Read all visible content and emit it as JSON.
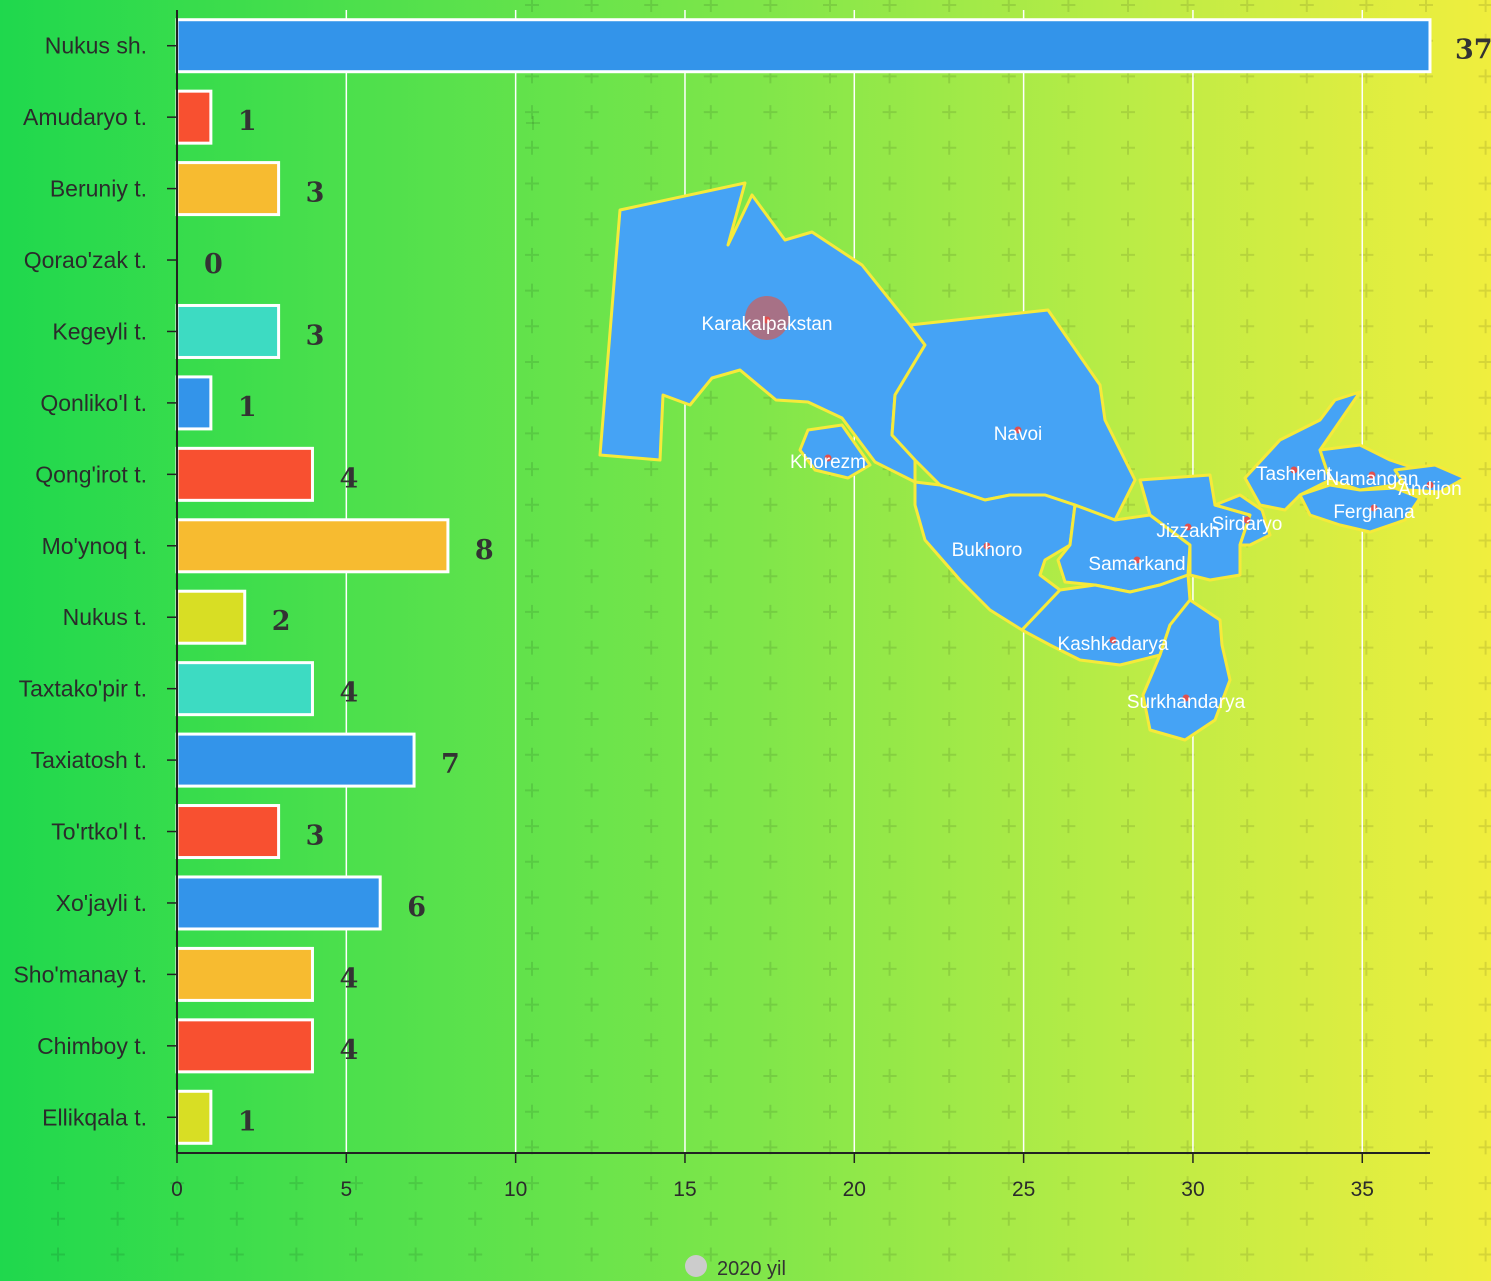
{
  "chart_data": {
    "type": "bar",
    "orientation": "horizontal",
    "categories": [
      "Nukus sh.",
      "Amudaryo t.",
      "Beruniy t.",
      "Qorao'zak t.",
      "Kegeyli t.",
      "Qonliko'l t.",
      "Qong'irot t.",
      "Mo'ynoq t.",
      "Nukus t.",
      "Taxtako'pir t.",
      "Taxiatosh t.",
      "To'rtko'l t.",
      "Xo'jayli t.",
      "Sho'manay t.",
      "Chimboy t.",
      "Ellikqala t."
    ],
    "values": [
      37,
      1,
      3,
      0,
      3,
      1,
      4,
      8,
      2,
      4,
      7,
      3,
      6,
      4,
      4,
      1
    ],
    "colors": [
      "#3394ea",
      "#f85030",
      "#f7bb30",
      "#d8de24",
      "#3ddbc2",
      "#3394ea",
      "#f85030",
      "#f7bb30",
      "#d8de24",
      "#3ddbc2",
      "#3394ea",
      "#f85030",
      "#3394ea",
      "#f7bb30",
      "#f85030",
      "#d8de24"
    ],
    "xlim": [
      0,
      37
    ],
    "xticks": [
      0,
      5,
      10,
      15,
      20,
      25,
      30,
      35
    ],
    "xlabel": "",
    "ylabel": "",
    "grid": "vertical",
    "legend": {
      "placement": "bottom-center",
      "entries": [
        {
          "name": "2020 yil",
          "color": "#cccccc"
        }
      ]
    }
  },
  "map": {
    "fill_color": "#45a3f5",
    "border_color": "#f6ea3a",
    "highlight_region": "Karakalpakstan",
    "highlight_color": "#c86060",
    "regions": [
      "Karakalpakstan",
      "Khorezm",
      "Navoi",
      "Bukhoro",
      "Samarkand",
      "Jizzakh",
      "Sirdaryo",
      "Tashkent",
      "Namangan",
      "Andijon",
      "Ferghana",
      "Kashkadarya",
      "Surkhandarya"
    ]
  }
}
